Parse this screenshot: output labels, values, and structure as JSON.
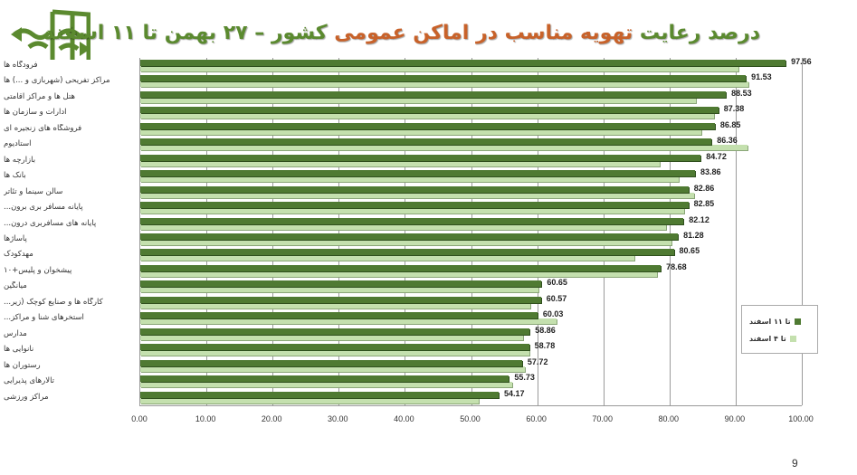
{
  "slide": {
    "logo_icon": "ventilation-window-icon",
    "title_part1": "درصد رعایت",
    "title_part2": "تهویه مناسب در اماکن عمومی",
    "title_part3": "کشور  – ۲۷ بهمن تا ۱۱ اسفند",
    "page_number": "9",
    "colors": {
      "current": "#4f7a32",
      "previous": "#c4e0ae",
      "title_green": "#5b8a2f",
      "title_orange": "#c8622a"
    }
  },
  "legend": {
    "items": [
      {
        "label": "تا ۱۱ اسفند",
        "color": "#4f7a32"
      },
      {
        "label": "تا ۴ اسفند",
        "color": "#c4e0ae"
      }
    ]
  },
  "chart_data": {
    "type": "bar",
    "orientation": "horizontal",
    "title": "درصد رعایت تهویه مناسب در اماکن عمومی کشور – ۲۷ بهمن تا ۱۱ اسفند",
    "xlabel": "",
    "ylabel": "",
    "xlim": [
      0,
      100
    ],
    "xticks": [
      "0.00",
      "10.00",
      "20.00",
      "30.00",
      "40.00",
      "50.00",
      "60.00",
      "70.00",
      "80.00",
      "90.00",
      "100.00"
    ],
    "grid": true,
    "legend_position": "right",
    "categories": [
      "فرودگاه ها",
      "مراکز تفریحی (شهربازی و ...) ها",
      "هتل ها و مراکز اقامتی",
      "ادارات و سازمان ها",
      "فروشگاه های زنجیره ای",
      "استادیوم",
      "بازارچه ها",
      "بانک ها",
      "سالن سینما و تئاتر",
      "پایانه مسافر بری برون...",
      "پایانه های مسافربری درون...",
      "پاساژها",
      "مهدکودک",
      "پیشخوان و پلیس+۱۰",
      "میانگین",
      "کارگاه ها و صنایع کوچک (زیر...",
      "استخرهای شنا و مراکز...",
      "مدارس",
      "نانوایی ها",
      "رستوران ها",
      "تالارهای پذیرایی",
      "مراکز ورزشی"
    ],
    "series": [
      {
        "name": "تا ۱۱ اسفند",
        "values": [
          97.56,
          91.53,
          88.53,
          87.38,
          86.85,
          86.36,
          84.72,
          83.86,
          82.86,
          82.85,
          82.12,
          81.28,
          80.65,
          78.68,
          60.65,
          60.57,
          60.03,
          58.86,
          58.78,
          57.72,
          55.73,
          54.17
        ],
        "labels": [
          "97.56",
          "91.53",
          "88.53",
          "87.38",
          "86.85",
          "86.36",
          "84.72",
          "83.86",
          "82.86",
          "82.85",
          "82.12",
          "81.28",
          "80.65",
          "78.68",
          "60.65",
          "60.57",
          "60.03",
          "58.86",
          "58.78",
          "57.72",
          "55.73",
          "54.17"
        ]
      },
      {
        "name": "تا ۴ اسفند",
        "values": [
          90.4,
          91.9,
          84.0,
          86.7,
          84.8,
          91.8,
          78.5,
          81.4,
          83.7,
          82.2,
          79.5,
          80.3,
          74.7,
          78.1,
          60.2,
          59.0,
          62.9,
          57.9,
          58.8,
          58.1,
          56.2,
          51.2
        ]
      }
    ]
  }
}
